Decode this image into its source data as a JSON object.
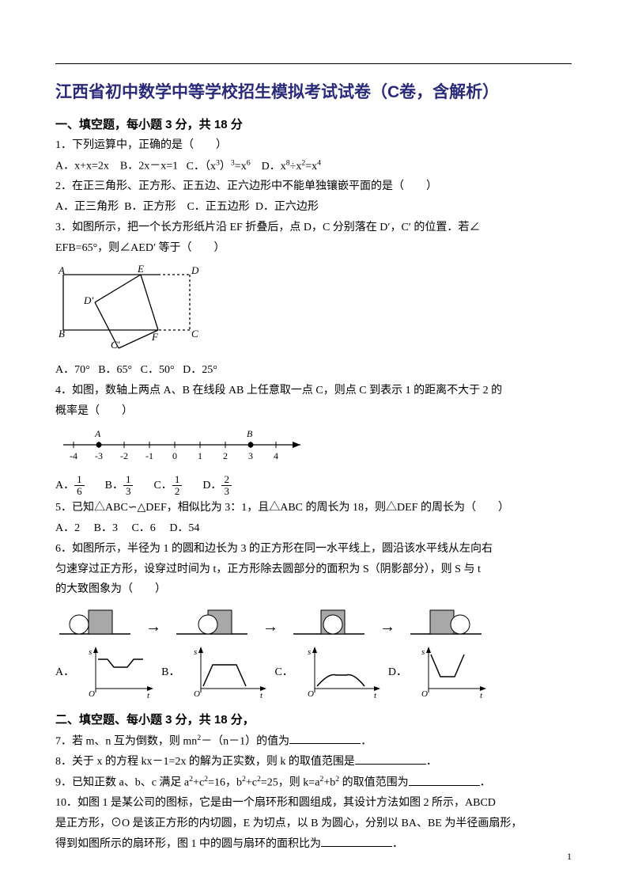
{
  "title": "江西省初中数学中等学校招生模拟考试试卷（C卷，含解析）",
  "section1": {
    "heading": "一、填空题，每小题 3 分，共 18 分",
    "q1": {
      "stem": "1．下列运算中，正确的是（　　）",
      "A": "A．x+x=2x",
      "B": "B．2x－x=1",
      "C_pre": "C．（x",
      "C_sup1": "3",
      "C_mid": "）",
      "C_sup2": "3",
      "C_mid2": "=x",
      "C_sup3": "6",
      "D_pre": "D．x",
      "D_sup1": "8",
      "D_mid": "÷x",
      "D_sup2": "2",
      "D_mid2": "=x",
      "D_sup3": "4"
    },
    "q2": {
      "stem": "2．在正三角形、正方形、正五边、正六边形中不能单独镶嵌平面的是（　　）",
      "A": "A．正三角形",
      "B": "B．正方形",
      "C": "C．正五边形",
      "D": "D．正六边形"
    },
    "q3": {
      "stem_a": "3．如图所示，把一个长方形纸片沿 EF 折叠后，点 D，C 分别落在 D′，C′ 的位置．若∠",
      "stem_b": "EFB=65°，则∠AED′ 等于（　　）",
      "A": "A．70°",
      "B": "B．65°",
      "C": "C．50°",
      "D": "D．25°",
      "labels": {
        "A": "A",
        "B": "B",
        "C": "C",
        "D": "D",
        "E": "E",
        "F": "F",
        "Dp": "D′",
        "Cp": "C′"
      }
    },
    "q4": {
      "stem_a": "4．如图，数轴上两点 A、B 在线段 AB 上任意取一点 C，则点 C 到表示 1 的距离不大于 2 的",
      "stem_b": "概率是（　　）",
      "ticks": [
        "-4",
        "-3",
        "-2",
        "-1",
        "0",
        "1",
        "2",
        "3",
        "4"
      ],
      "ptA": "A",
      "ptB": "B",
      "A": "A．",
      "B": "B．",
      "C": "C．",
      "D": "D．",
      "fA_n": "1",
      "fA_d": "6",
      "fB_n": "1",
      "fB_d": "3",
      "fC_n": "1",
      "fC_d": "2",
      "fD_n": "2",
      "fD_d": "3"
    },
    "q5": {
      "stem": "5．已知△ABC∽△DEF，相似比为 3：1，且△ABC 的周长为 18，则△DEF 的周长为（　　）",
      "A": "A．2",
      "B": "B．3",
      "C": "C．6",
      "D": "D．54"
    },
    "q6": {
      "stem_a": "6．如图所示，半径为 1 的圆和边长为 3 的正方形在同一水平线上，圆沿该水平线从左向右",
      "stem_b": "匀速穿过正方形，设穿过时间为 t，正方形除去圆部分的面积为 S（阴影部分），则 S 与 t",
      "stem_c": "的大致图象为（　　）",
      "A": "A．",
      "B": "B．",
      "C": "C．",
      "D": "D．",
      "axis_s": "s",
      "axis_t": "t",
      "axis_o": "O"
    }
  },
  "section2": {
    "heading": "二、填空题、每小题 3 分，共 18 分，",
    "q7_a": "7．若 m、n 互为倒数，则 mn",
    "q7_sup": "2",
    "q7_b": "－（n－1）的值为",
    "q7_c": "．",
    "q8_a": "8．关于 x 的方程 kx－1=2x 的解为正实数，则 k 的取值范围是",
    "q8_b": "．",
    "q9_a": "9．已知正数 a、b、c 满足 a",
    "q9_s1": "2",
    "q9_b": "+c",
    "q9_s2": "2",
    "q9_c": "=16，b",
    "q9_s3": "2",
    "q9_d": "+c",
    "q9_s4": "2",
    "q9_e": "=25，则 k=a",
    "q9_s5": "2",
    "q9_f": "+b",
    "q9_s6": "2",
    "q9_g": " 的取值范围为",
    "q9_h": "．",
    "q10_a": "10．如图 1 是某公司的图标，它是由一个扇环形和圆组成，其设计方法如图 2 所示，ABCD",
    "q10_b": "是正方形，⊙O 是该正方形的内切圆，E 为切点，以 B 为圆心，分别以 BA、BE 为半径画扇形，",
    "q10_c": "得到如图所示的扇环形，图 1 中的圆与扇环的面积比为",
    "q10_d": "．"
  },
  "page": "1",
  "colors": {
    "title": "#2a2a7a",
    "text": "#000000",
    "square_fill": "#a8a8a8"
  }
}
